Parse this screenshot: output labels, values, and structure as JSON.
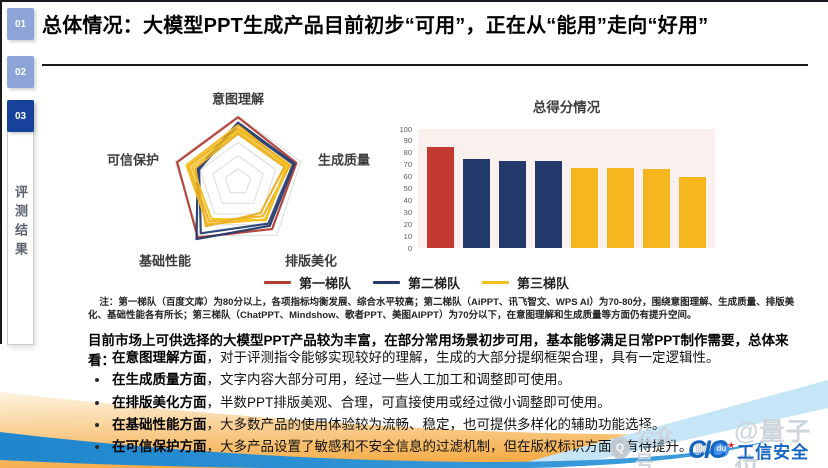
{
  "header": {
    "title": "总体情况：大模型PPT生成产品目前初步“可用”，正在从“能用”走向“好用”"
  },
  "sidebar": {
    "items": [
      {
        "label": "01"
      },
      {
        "label": "02"
      },
      {
        "label": "03"
      }
    ],
    "section_label": "评测结果"
  },
  "chart_data": [
    {
      "type": "radar",
      "axes": [
        "意图理解",
        "生成质量",
        "排版美化",
        "基础性能",
        "可信保护"
      ],
      "max": 100,
      "grid_levels": 5,
      "grid_color": "#dcdcdc",
      "series": [
        {
          "tier": "第一梯队",
          "color": "#b23d35",
          "values": [
            98,
            93,
            88,
            104,
            97
          ]
        },
        {
          "tier": "第二梯队",
          "color": "#24396b",
          "values": [
            90,
            90,
            82,
            107,
            64
          ]
        },
        {
          "tier": "第二梯队",
          "color": "#2a4276",
          "values": [
            87,
            88,
            78,
            96,
            62
          ]
        },
        {
          "tier": "第三梯队",
          "color": "#f5bb1c",
          "values": [
            86,
            80,
            70,
            79,
            82
          ]
        },
        {
          "tier": "第三梯队",
          "color": "#eeb018",
          "values": [
            81,
            83,
            64,
            74,
            78
          ]
        },
        {
          "tier": "第三梯队",
          "color": "#f2c11f",
          "values": [
            77,
            77,
            72,
            69,
            73
          ]
        },
        {
          "tier": "第三梯队",
          "color": "#e8af25",
          "values": [
            73,
            74,
            58,
            83,
            68
          ]
        }
      ]
    },
    {
      "type": "bar",
      "title": "总得分情况",
      "values": [
        85,
        75,
        73,
        73,
        67,
        67,
        66,
        60
      ],
      "colors": [
        "#c23a30",
        "#24396b",
        "#24396b",
        "#24396b",
        "#f6b71e",
        "#f6b71e",
        "#f6b71e",
        "#f6b71e"
      ],
      "ylim": [
        0,
        100
      ],
      "yticks": [
        0,
        10,
        20,
        30,
        40,
        50,
        60,
        70,
        80,
        90,
        100
      ],
      "plot_bg": "#faf0ee"
    }
  ],
  "legend": [
    {
      "label": "第一梯队",
      "color": "#b23d35"
    },
    {
      "label": "第二梯队",
      "color": "#24396b"
    },
    {
      "label": "第三梯队",
      "color": "#f3c11d"
    }
  ],
  "note": {
    "text": "注：第一梯队（百度文库）为80分以上，各项指标均衡发展、综合水平较高；第二梯队（AiPPT、讯飞智文、WPS AI）为70-80分，围绕意图理解、生成质量、排版美化、基础性能各有所长；第三梯队（ChatPPT、Mindshow、歌者PPT、美图AIPPT）为70分以下，在意图理解和生成质量等方面仍有提升空间。"
  },
  "body": {
    "intro": "目前市场上可供选择的大模型PPT产品较为丰富，在部分常用场景初步可用，基本能够满足日常PPT制作需要，总体来看：",
    "bullets": [
      {
        "lead": "在意图理解方面",
        "text": "，对于评测指令能够实现较好的理解，生成的大部分提纲框架合理，具有一定逻辑性。"
      },
      {
        "lead": "在生成质量方面",
        "text": "，文字内容大部分可用，经过一些人工加工和调整即可使用。"
      },
      {
        "lead": "在排版美化方面",
        "text": "，半数PPT排版美观、合理，可直接使用或经过微小调整即可使用。"
      },
      {
        "lead": "在基础性能方面",
        "text": "，大多数产品的使用体验较为流畅、稳定，也可提供多样化的辅助功能选择。"
      },
      {
        "lead": "在可信保护方面",
        "text": "，大多产品设置了敏感和不安全信息的过滤机制，但在版权标识方面仍有待提升。"
      }
    ]
  },
  "watermark": {
    "prefix": "公众号",
    "qr_icon": "▦",
    "paw_label": "du",
    "handle": "@量子位"
  },
  "logo": {
    "abbr": "CIC",
    "name": "工信安全"
  },
  "colors": {
    "tier1_red": "#c23a30",
    "tier2_navy": "#24396b",
    "tier3_yellow": "#f6b71e",
    "sidebar_light": "#8ca4d8",
    "sidebar_dark": "#17419a",
    "wave_blue": "#2089d2",
    "wave_orange": "#f5ab45",
    "wave_lightblue": "#c6e5f6"
  }
}
